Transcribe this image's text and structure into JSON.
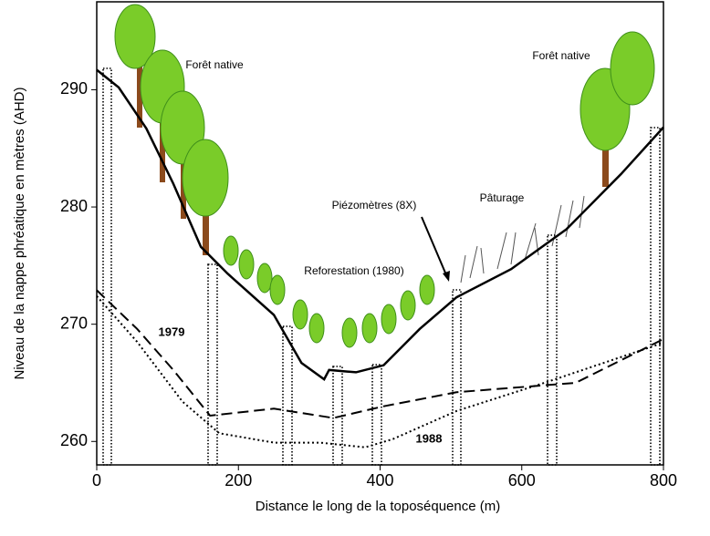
{
  "chart_data": {
    "type": "line",
    "xlabel": "Distance le long de la toposéquence (m)",
    "ylabel": "Niveau de la nappe phréatique en mètres (AHD)",
    "xlim": [
      0,
      800
    ],
    "ylim": [
      258,
      297.5
    ],
    "xticks": [
      0,
      200,
      400,
      600,
      800
    ],
    "yticks": [
      260,
      270,
      280,
      290
    ],
    "series": [
      {
        "name": null,
        "style": "solid",
        "color": "#000000",
        "x": [
          0,
          31,
          70,
          108,
          147,
          185,
          250,
          289,
          321,
          328,
          366,
          405,
          456,
          508,
          585,
          663,
          740,
          800
        ],
        "values": [
          291.7,
          290.2,
          286.7,
          282.0,
          276.6,
          274.3,
          270.8,
          266.7,
          265.3,
          266.1,
          265.9,
          266.5,
          269.6,
          272.3,
          274.7,
          278.1,
          282.8,
          286.8
        ]
      },
      {
        "name": "1979",
        "style": "dashed",
        "color": "#000000",
        "x": [
          0,
          57,
          108,
          160,
          250,
          334,
          405,
          508,
          676,
          799
        ],
        "values": [
          272.9,
          269.6,
          266.1,
          262.2,
          262.8,
          262.0,
          263.0,
          264.2,
          265.0,
          268.7
        ]
      },
      {
        "name": "1988",
        "style": "dotted",
        "color": "#000000",
        "x": [
          0,
          57,
          121,
          173,
          250,
          315,
          379,
          418,
          508,
          637,
          799
        ],
        "values": [
          272.4,
          268.5,
          263.4,
          260.7,
          259.9,
          259.9,
          259.5,
          260.2,
          262.6,
          265.1,
          268.4
        ]
      }
    ],
    "annotations": [
      "Forêt native",
      "Forêt native",
      "Piézomètres (8X)",
      "Pâturage",
      "Reforestation (1980)"
    ]
  }
}
